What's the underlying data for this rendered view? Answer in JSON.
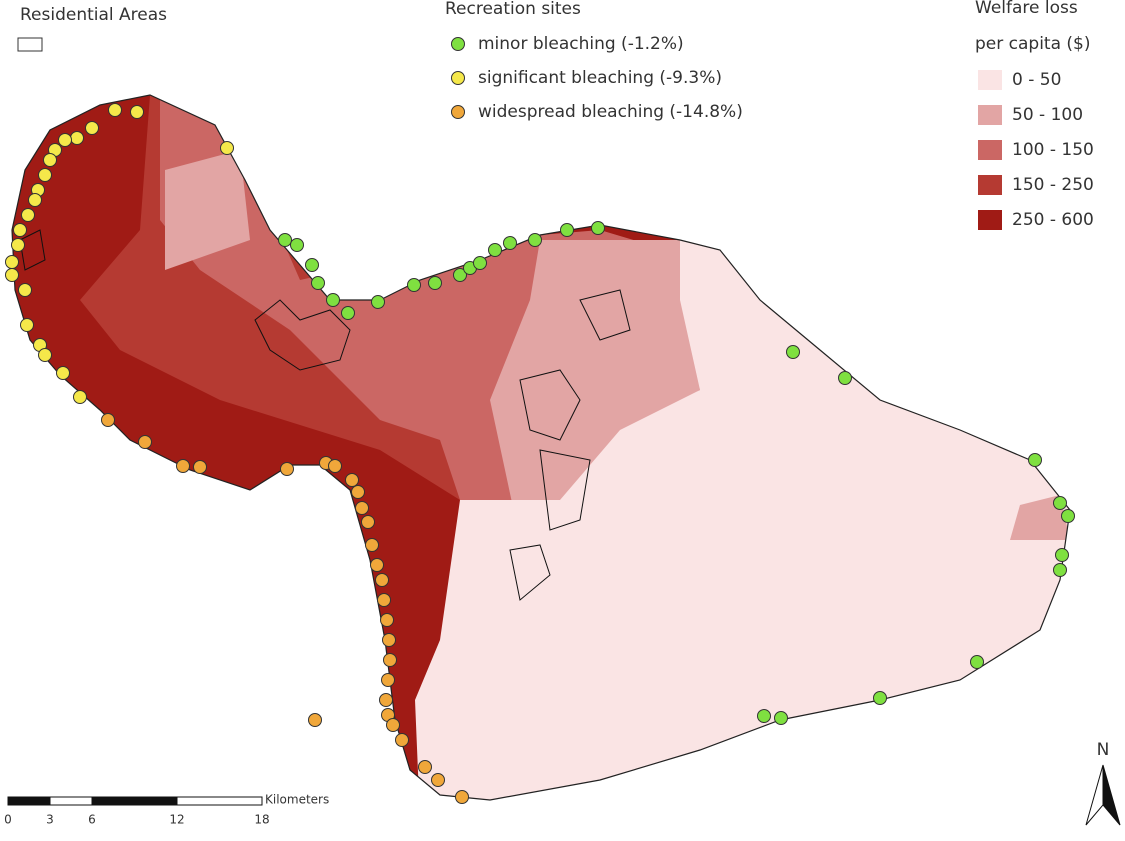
{
  "legend_residential": {
    "title": "Residential Areas"
  },
  "legend_sites": {
    "title": "Recreation sites",
    "items": [
      {
        "label": "minor bleaching (-1.2%)",
        "color": "#7fe040"
      },
      {
        "label": "significant bleaching (-9.3%)",
        "color": "#f5e84a"
      },
      {
        "label": "widespread bleaching (-14.8%)",
        "color": "#f0a73a"
      }
    ]
  },
  "legend_welfare": {
    "title": [
      "Welfare loss",
      "per capita ($)"
    ],
    "items": [
      {
        "label": "0 - 50",
        "color": "#fae4e4"
      },
      {
        "label": "50 - 100",
        "color": "#e2a5a4"
      },
      {
        "label": "100 - 150",
        "color": "#cb6764"
      },
      {
        "label": "150 - 250",
        "color": "#b53a32"
      },
      {
        "label": "250 - 600",
        "color": "#a01b15"
      }
    ]
  },
  "scale_bar": {
    "unit": "Kilometers",
    "ticks": [
      "0",
      "3",
      "6",
      "12",
      "18"
    ]
  },
  "north": "N"
}
